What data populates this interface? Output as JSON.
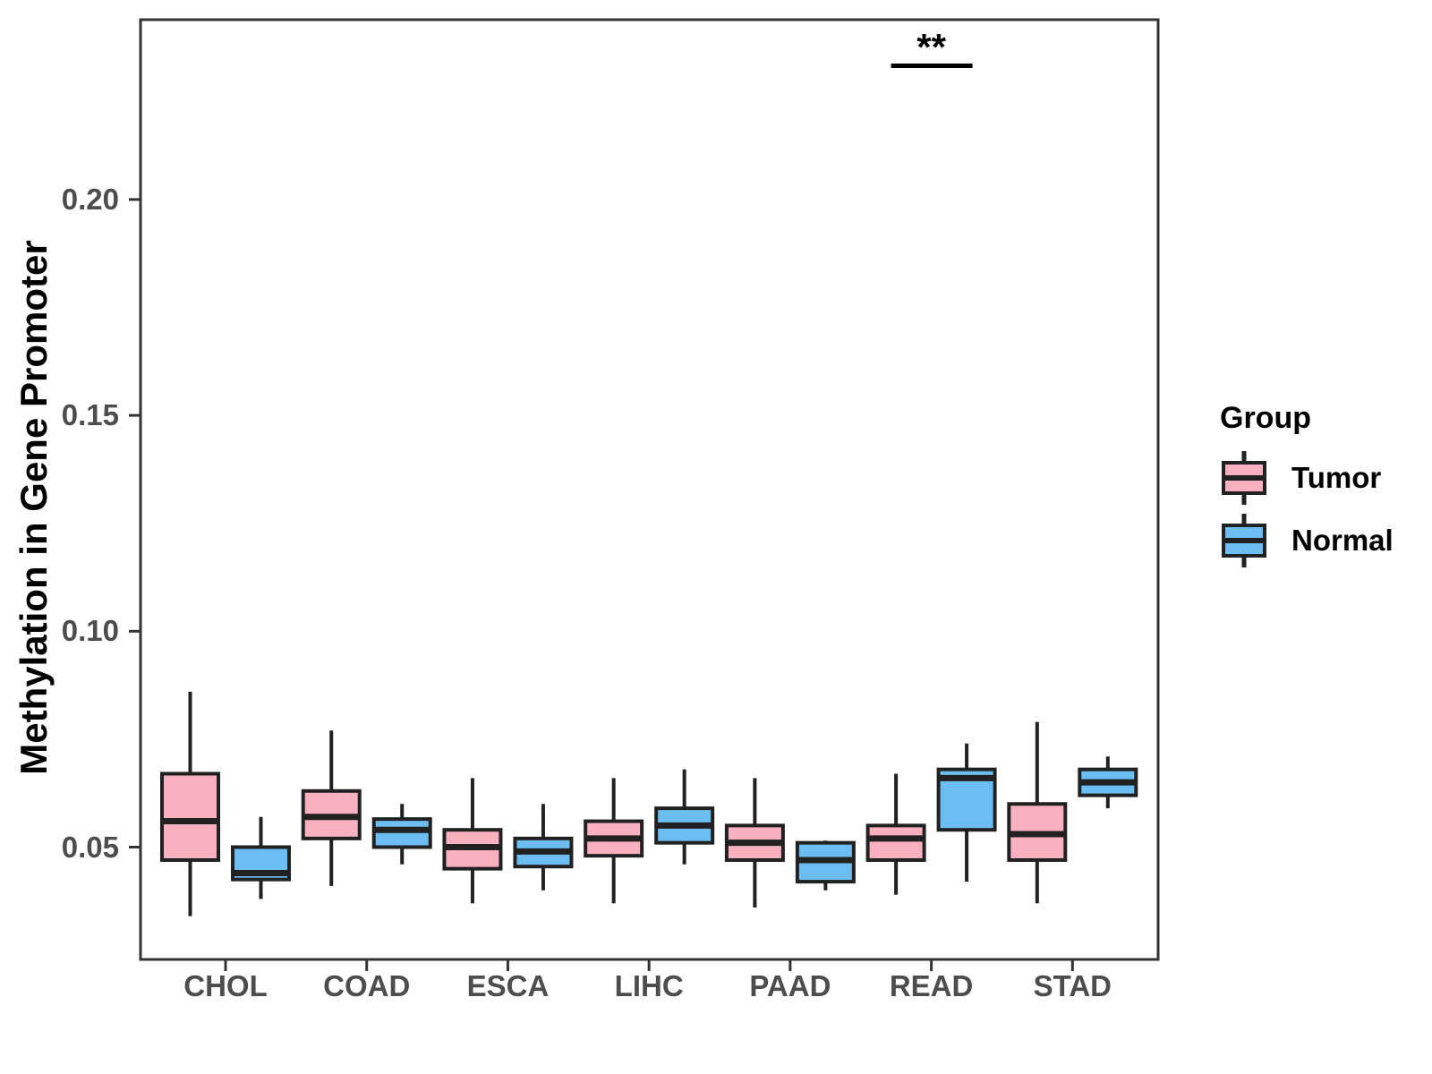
{
  "chart_data": {
    "type": "boxplot",
    "title": "",
    "ylabel": "Methylation in Gene Promoter",
    "xlabel": "",
    "categories": [
      "CHOL",
      "COAD",
      "ESCA",
      "LIHC",
      "PAAD",
      "READ",
      "STAD"
    ],
    "groups": [
      "Tumor",
      "Normal"
    ],
    "colors": {
      "tumor": "#F9B0BF",
      "normal": "#6CBEF2",
      "box_outline": "#212121",
      "axis": "#333333",
      "tick_label": "#4D4D4D",
      "annotation": "#000000"
    },
    "ylim": [
      0.024,
      0.242
    ],
    "yticks": [
      {
        "value": 0.05,
        "label": "0.05"
      },
      {
        "value": 0.1,
        "label": "0.10"
      },
      {
        "value": 0.15,
        "label": "0.15"
      },
      {
        "value": 0.2,
        "label": "0.20"
      }
    ],
    "grid": false,
    "legend": {
      "title": "Group",
      "position": "right",
      "items": [
        {
          "label": "Tumor",
          "color_key": "tumor"
        },
        {
          "label": "Normal",
          "color_key": "normal"
        }
      ]
    },
    "series": [
      {
        "name": "Tumor",
        "boxes": [
          {
            "category": "CHOL",
            "whisker_low": 0.034,
            "q1": 0.047,
            "median": 0.056,
            "q3": 0.067,
            "whisker_high": 0.086
          },
          {
            "category": "COAD",
            "whisker_low": 0.041,
            "q1": 0.052,
            "median": 0.057,
            "q3": 0.063,
            "whisker_high": 0.077
          },
          {
            "category": "ESCA",
            "whisker_low": 0.037,
            "q1": 0.045,
            "median": 0.05,
            "q3": 0.054,
            "whisker_high": 0.066
          },
          {
            "category": "LIHC",
            "whisker_low": 0.037,
            "q1": 0.048,
            "median": 0.052,
            "q3": 0.056,
            "whisker_high": 0.066
          },
          {
            "category": "PAAD",
            "whisker_low": 0.036,
            "q1": 0.047,
            "median": 0.051,
            "q3": 0.055,
            "whisker_high": 0.066
          },
          {
            "category": "READ",
            "whisker_low": 0.039,
            "q1": 0.047,
            "median": 0.052,
            "q3": 0.055,
            "whisker_high": 0.067
          },
          {
            "category": "STAD",
            "whisker_low": 0.037,
            "q1": 0.047,
            "median": 0.053,
            "q3": 0.06,
            "whisker_high": 0.079
          }
        ]
      },
      {
        "name": "Normal",
        "boxes": [
          {
            "category": "CHOL",
            "whisker_low": 0.038,
            "q1": 0.0425,
            "median": 0.044,
            "q3": 0.05,
            "whisker_high": 0.057
          },
          {
            "category": "COAD",
            "whisker_low": 0.046,
            "q1": 0.05,
            "median": 0.054,
            "q3": 0.0565,
            "whisker_high": 0.06
          },
          {
            "category": "ESCA",
            "whisker_low": 0.04,
            "q1": 0.0455,
            "median": 0.049,
            "q3": 0.052,
            "whisker_high": 0.06
          },
          {
            "category": "LIHC",
            "whisker_low": 0.046,
            "q1": 0.051,
            "median": 0.055,
            "q3": 0.059,
            "whisker_high": 0.068
          },
          {
            "category": "PAAD",
            "whisker_low": 0.04,
            "q1": 0.042,
            "median": 0.047,
            "q3": 0.051,
            "whisker_high": 0.0515
          },
          {
            "category": "READ",
            "whisker_low": 0.042,
            "q1": 0.054,
            "median": 0.066,
            "q3": 0.068,
            "whisker_high": 0.074
          },
          {
            "category": "STAD",
            "whisker_low": 0.059,
            "q1": 0.062,
            "median": 0.065,
            "q3": 0.068,
            "whisker_high": 0.071
          }
        ]
      }
    ],
    "significance": [
      {
        "category": "READ",
        "label": "**"
      }
    ]
  }
}
